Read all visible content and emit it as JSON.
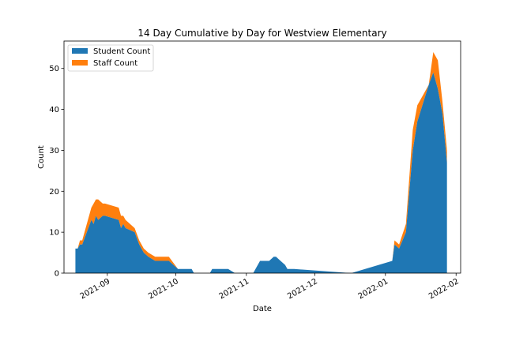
{
  "chart_data": {
    "type": "area",
    "stacked": true,
    "title": "14 Day Cumulative by Day for Westview Elementary",
    "xlabel": "Date",
    "ylabel": "Count",
    "ylim": [
      0,
      56.7
    ],
    "xlim": [
      "2021-08-13",
      "2022-02-03"
    ],
    "grid": false,
    "legend_position": "upper left",
    "x_ticks": [
      "2021-09",
      "2021-10",
      "2021-11",
      "2021-12",
      "2022-01",
      "2022-02"
    ],
    "y_ticks": [
      0,
      10,
      20,
      30,
      40,
      50
    ],
    "colors": {
      "student": "#1f77b4",
      "staff": "#ff7f0e"
    },
    "dates": [
      "2021-08-18",
      "2021-08-19",
      "2021-08-20",
      "2021-08-21",
      "2021-08-25",
      "2021-08-26",
      "2021-08-27",
      "2021-08-28",
      "2021-08-30",
      "2021-08-31",
      "2021-09-06",
      "2021-09-07",
      "2021-09-08",
      "2021-09-09",
      "2021-09-13",
      "2021-09-15",
      "2021-09-17",
      "2021-09-19",
      "2021-09-22",
      "2021-09-28",
      "2021-10-02",
      "2021-10-08",
      "2021-10-09",
      "2021-10-16",
      "2021-10-17",
      "2021-10-24",
      "2021-10-27",
      "2021-11-03",
      "2021-11-04",
      "2021-11-07",
      "2021-11-08",
      "2021-11-11",
      "2021-11-13",
      "2021-11-14",
      "2021-11-16",
      "2021-11-18",
      "2021-11-19",
      "2021-11-20",
      "2021-11-22",
      "2021-12-17",
      "2022-01-04",
      "2022-01-05",
      "2022-01-07",
      "2022-01-10",
      "2022-01-13",
      "2022-01-15",
      "2022-01-20",
      "2022-01-22",
      "2022-01-24",
      "2022-01-26",
      "2022-01-28"
    ],
    "series": [
      {
        "name": "Student Count",
        "values": [
          6,
          6,
          7,
          7,
          13,
          12,
          14,
          13,
          14,
          14,
          13,
          11,
          12,
          11,
          10,
          7,
          5,
          4,
          3,
          3,
          1,
          1,
          0,
          0,
          1,
          1,
          0,
          0,
          0,
          3,
          3,
          3,
          4,
          4,
          3,
          2,
          1,
          1,
          1,
          0,
          3,
          7,
          6,
          10,
          30,
          37,
          46,
          49,
          45,
          39,
          27
        ]
      },
      {
        "name": "Staff Count",
        "values": [
          0,
          0,
          1,
          1,
          3,
          5,
          4,
          5,
          3,
          3,
          3,
          3,
          2,
          2,
          1,
          1,
          1,
          1,
          1,
          1,
          0,
          0,
          0,
          0,
          0,
          0,
          0,
          0,
          0,
          0,
          0,
          0,
          0,
          0,
          0,
          0,
          0,
          0,
          0,
          0,
          0,
          1,
          1,
          2,
          5,
          4,
          0,
          5,
          7,
          3,
          3
        ]
      }
    ]
  }
}
